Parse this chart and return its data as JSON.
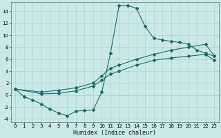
{
  "xlabel": "Humidex (Indice chaleur)",
  "bg_color": "#cbe8e8",
  "line_color": "#1a6b6b",
  "grid_color": "#b0d4d4",
  "xlim": [
    -0.5,
    23.5
  ],
  "ylim": [
    -4.5,
    15.5
  ],
  "xticks": [
    0,
    1,
    2,
    3,
    4,
    5,
    6,
    7,
    8,
    9,
    10,
    11,
    12,
    13,
    14,
    15,
    16,
    17,
    18,
    19,
    20,
    21,
    22,
    23
  ],
  "yticks": [
    -4,
    -2,
    0,
    2,
    4,
    6,
    8,
    10,
    12,
    14
  ],
  "curve1_x": [
    0,
    1,
    2,
    3,
    4,
    5,
    6,
    7,
    8,
    9,
    10,
    11,
    12,
    13,
    14,
    15,
    16,
    17,
    18,
    19,
    20,
    21,
    22,
    23
  ],
  "curve1_y": [
    1.0,
    -0.3,
    -0.8,
    -1.5,
    -2.4,
    -3.0,
    -3.5,
    -2.7,
    -2.6,
    -2.5,
    0.5,
    7.0,
    15.0,
    15.0,
    14.5,
    11.5,
    9.5,
    9.2,
    9.0,
    8.8,
    8.5,
    7.5,
    7.0,
    6.5
  ],
  "curve2_x": [
    0,
    3,
    5,
    7,
    9,
    10,
    11,
    12,
    14,
    16,
    18,
    20,
    22,
    23
  ],
  "curve2_y": [
    1.0,
    0.5,
    0.8,
    1.2,
    2.0,
    3.2,
    4.5,
    5.0,
    6.0,
    6.8,
    7.5,
    8.0,
    8.5,
    6.5
  ],
  "curve3_x": [
    0,
    3,
    5,
    7,
    9,
    10,
    11,
    12,
    14,
    16,
    18,
    20,
    22,
    23
  ],
  "curve3_y": [
    1.0,
    0.2,
    0.3,
    0.7,
    1.5,
    2.5,
    3.5,
    4.0,
    5.0,
    5.8,
    6.2,
    6.5,
    6.8,
    5.8
  ]
}
